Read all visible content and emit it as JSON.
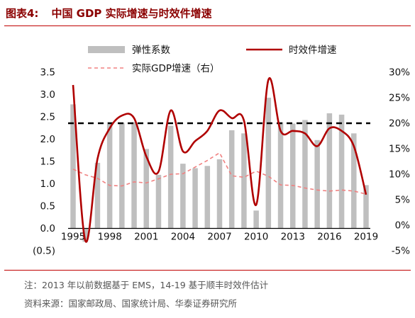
{
  "figure": {
    "label": "图表4:",
    "title": "中国 GDP 实际增速与时效件增速"
  },
  "notes": {
    "note": "注：2013 年以前数据基于 EMS，14-19 基于顺丰时效件估计",
    "source": "资料来源：国家邮政局、国家统计局、华泰证券研究所"
  },
  "colors": {
    "bar": "#bfbfbf",
    "express_line": "#b00000",
    "gdp_line": "#f08080",
    "reference_line": "#000000"
  },
  "chart_data": {
    "type": "bar",
    "categories": [
      "1995",
      "1996",
      "1997",
      "1998",
      "1999",
      "2000",
      "2001",
      "2002",
      "2003",
      "2004",
      "2005",
      "2006",
      "2007",
      "2008",
      "2009",
      "2010",
      "2011",
      "2012",
      "2013",
      "2014",
      "2015",
      "2016",
      "2017",
      "2018",
      "2019"
    ],
    "series": [
      {
        "name": "弹性系数",
        "axis": "left",
        "type": "bar",
        "values": [
          2.78,
          -0.3,
          1.47,
          2.38,
          2.37,
          2.38,
          1.78,
          1.2,
          2.3,
          1.45,
          1.35,
          1.4,
          1.55,
          2.2,
          2.13,
          0.4,
          2.93,
          2.38,
          2.35,
          2.43,
          1.98,
          2.58,
          2.55,
          2.13,
          0.97
        ]
      },
      {
        "name": "时效件增速",
        "axis": "right",
        "type": "line",
        "values": [
          27.5,
          -3.0,
          13.0,
          19.0,
          21.5,
          21.0,
          13.5,
          10.5,
          22.5,
          14.5,
          16.5,
          18.5,
          22.5,
          21.0,
          20.5,
          4.0,
          28.5,
          18.5,
          18.5,
          18.0,
          15.5,
          19.0,
          18.5,
          15.5,
          6.0
        ]
      },
      {
        "name": "实际GDP增速（右）",
        "axis": "right",
        "type": "line",
        "style": "dashed",
        "values": [
          11.0,
          9.9,
          9.2,
          7.8,
          7.7,
          8.5,
          8.3,
          9.1,
          10.0,
          10.1,
          11.4,
          12.7,
          14.2,
          9.7,
          9.4,
          10.6,
          9.6,
          7.9,
          7.8,
          7.3,
          6.9,
          6.7,
          6.9,
          6.7,
          6.1
        ]
      }
    ],
    "reference_line": {
      "axis": "right",
      "value": 20
    },
    "x_tick_labels": [
      "1995",
      "1998",
      "2001",
      "2004",
      "2007",
      "2010",
      "2013",
      "2016",
      "2019"
    ],
    "y_left": {
      "range": [
        -0.5,
        3.5
      ],
      "ticks": [
        3.5,
        3.0,
        2.5,
        2.0,
        1.5,
        1.0,
        0.5,
        0.0,
        -0.5
      ],
      "tick_labels": [
        "3.5",
        "3.0",
        "2.5",
        "2.0",
        "1.5",
        "1.0",
        "0.5",
        "0.0",
        "(0.5)"
      ]
    },
    "y_right": {
      "range": [
        -5,
        30
      ],
      "ticks": [
        30,
        25,
        20,
        15,
        10,
        5,
        0,
        -5
      ],
      "tick_labels": [
        "30%",
        "25%",
        "20%",
        "15%",
        "10%",
        "5%",
        "0%",
        "-5%"
      ]
    },
    "legend_position": "top"
  }
}
